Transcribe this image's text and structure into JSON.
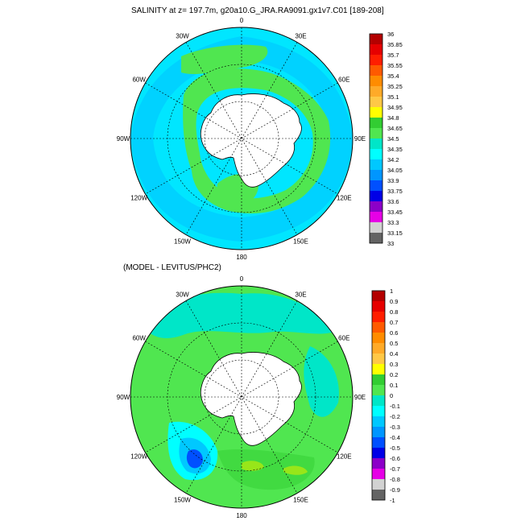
{
  "panels": [
    {
      "title": "SALINITY at z= 197.7m, g20a10.G_JRA.RA9091.gx1v7.C01 [189-208]",
      "lon_labels": [
        "0",
        "30E",
        "60E",
        "90E",
        "120E",
        "150E",
        "180",
        "150W",
        "120W",
        "90W",
        "60W",
        "30W"
      ],
      "colorbar": {
        "levels": [
          "36",
          "35.85",
          "35.7",
          "35.55",
          "35.4",
          "35.25",
          "35.1",
          "34.95",
          "34.8",
          "34.65",
          "34.5",
          "34.35",
          "34.2",
          "34.05",
          "33.9",
          "33.75",
          "33.6",
          "33.45",
          "33.3",
          "33.15",
          "33"
        ],
        "colors": [
          "#b40000",
          "#e60000",
          "#ff1e00",
          "#ff5a00",
          "#ff8c00",
          "#ffaa28",
          "#ffc846",
          "#ffff00",
          "#32cd32",
          "#50e650",
          "#00e6c8",
          "#00ffff",
          "#00c8ff",
          "#0096ff",
          "#0050ff",
          "#0000e6",
          "#8c00c8",
          "#e600e6",
          "#d2d2d2",
          "#646464"
        ]
      }
    },
    {
      "title": "(MODEL - LEVITUS/PHC2)",
      "lon_labels": [
        "0",
        "30E",
        "60E",
        "90E",
        "120E",
        "150E",
        "180",
        "150W",
        "120W",
        "90W",
        "60W",
        "30W"
      ],
      "colorbar": {
        "levels": [
          "1",
          "0.9",
          "0.8",
          "0.7",
          "0.6",
          "0.5",
          "0.4",
          "0.3",
          "0.2",
          "0.1",
          "0",
          "-0.1",
          "-0.2",
          "-0.3",
          "-0.4",
          "-0.5",
          "-0.6",
          "-0.7",
          "-0.8",
          "-0.9",
          "-1"
        ],
        "colors": [
          "#b40000",
          "#e60000",
          "#ff1e00",
          "#ff5a00",
          "#ff8c00",
          "#ffaa28",
          "#ffc846",
          "#ffff00",
          "#32cd32",
          "#50e650",
          "#00e6c8",
          "#00ffff",
          "#00c8ff",
          "#0096ff",
          "#0050ff",
          "#0000e6",
          "#8c00c8",
          "#e600e6",
          "#d2d2d2",
          "#646464"
        ]
      }
    }
  ]
}
